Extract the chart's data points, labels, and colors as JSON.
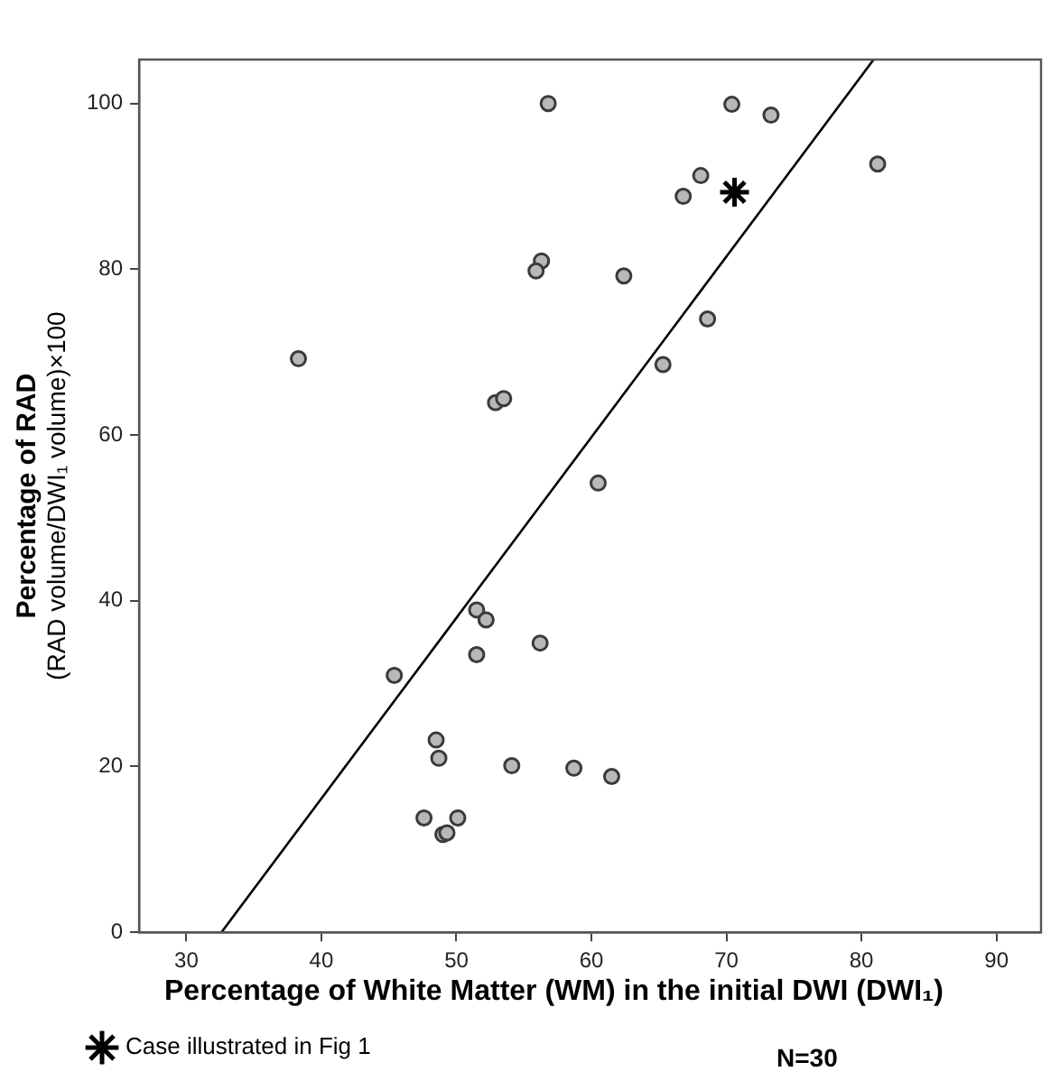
{
  "chart_data": {
    "type": "scatter",
    "xlabel": "Percentage of White Matter (WM) in the initial DWI (DWI₁)",
    "ylabel": "Percentage of RAD\n(RAD volume/DWI₁ volume)×100",
    "xlim": [
      26.5,
      93.3
    ],
    "xticks": [
      30,
      40,
      50,
      60,
      70,
      80,
      90
    ],
    "ylim": [
      0,
      105.3
    ],
    "yticks": [
      0,
      20,
      40,
      60,
      80,
      100
    ],
    "grid": false,
    "legend": "bottom left",
    "marker": "circle",
    "series": [
      {
        "color": "#b8b8b8",
        "x": [
          56.8,
          70.4,
          73.3,
          81.2,
          68.1,
          66.8,
          56.3,
          55.9,
          62.4,
          68.6,
          65.3,
          38.3,
          52.9,
          53.5,
          60.5,
          51.5,
          52.2,
          56.2,
          51.5,
          45.4,
          48.5,
          48.7,
          54.1,
          58.7,
          61.5,
          47.6,
          50.1,
          49.0,
          49.3
        ],
        "values": [
          100,
          99.9,
          98.6,
          92.7,
          91.3,
          88.8,
          81.0,
          79.8,
          79.2,
          74.0,
          68.5,
          69.2,
          63.9,
          64.4,
          54.2,
          38.9,
          37.7,
          34.9,
          33.5,
          31.0,
          23.2,
          21.0,
          20.1,
          19.8,
          18.8,
          13.8,
          13.8,
          11.8,
          12.0
        ]
      },
      {
        "name": "Case illustrated in Fig 1",
        "color": "#000000",
        "marker": "cross",
        "x": [
          70.6
        ],
        "values": [
          89.3
        ]
      },
      {
        "type": "line",
        "color": "#000000",
        "marker": "none",
        "line_style": "solid",
        "x": [
          32.6,
          80.9
        ],
        "values": [
          0,
          105.3
        ]
      }
    ],
    "annotations": [
      "N=30"
    ]
  }
}
